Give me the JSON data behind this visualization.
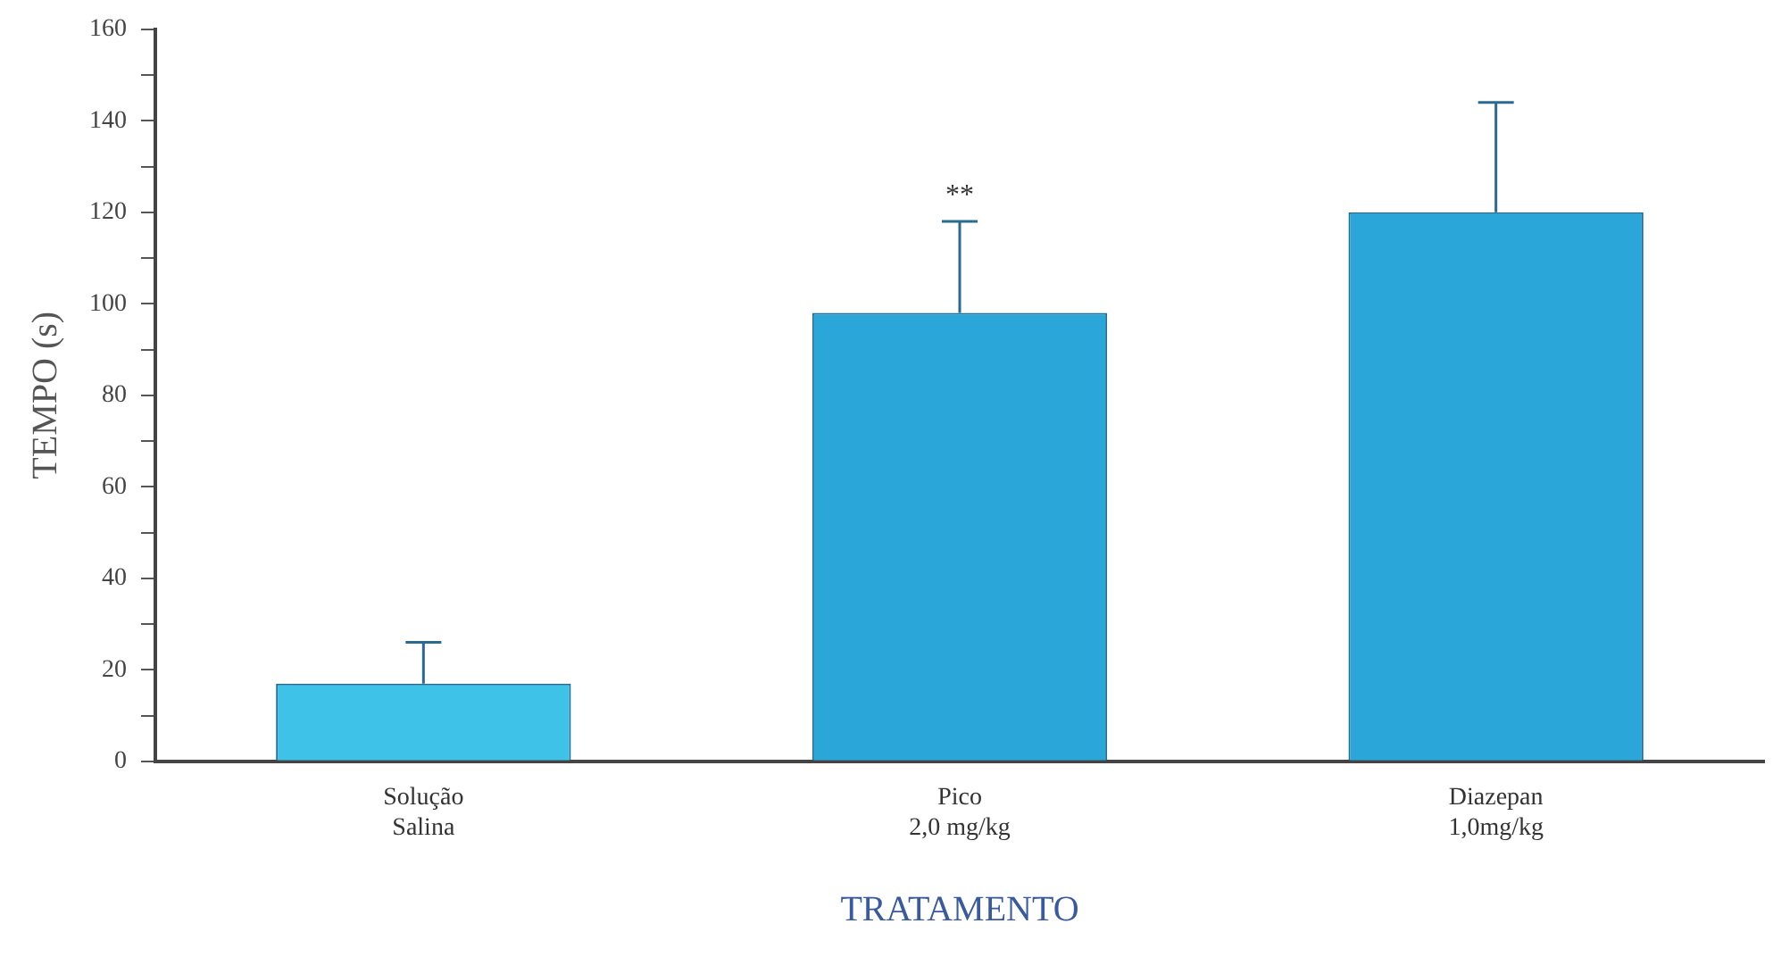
{
  "chart_data": {
    "type": "bar",
    "xlabel": "TRATAMENTO",
    "ylabel": "TEMPO (s)",
    "categories": [
      "Solução\nSalina",
      "Pico\n2,0 mg/kg",
      "Diazepan\n1,0mg/kg"
    ],
    "values": [
      17,
      98,
      120
    ],
    "colors": [
      "#3ec2e8",
      "#2aa6d8",
      "#2aa6d8"
    ],
    "errors": [
      [
        17,
        26
      ],
      [
        98,
        118
      ],
      [
        120,
        144
      ]
    ],
    "ylim": [
      0,
      160
    ],
    "yticks": [
      0,
      {
        "value": 10,
        "label": null
      },
      20,
      {
        "value": 30,
        "label": null
      },
      40,
      {
        "value": 50,
        "label": null
      },
      60,
      {
        "value": 70,
        "label": null
      },
      80,
      {
        "value": 90,
        "label": null
      },
      100,
      {
        "value": 110,
        "label": null
      },
      120,
      {
        "value": 130,
        "label": null
      },
      140,
      {
        "value": 150,
        "label": null
      },
      160
    ],
    "annotations": [
      {
        "text": "**",
        "x": "Pico\n2,0 mg/kg",
        "y": 118
      }
    ],
    "grid": false,
    "legend": false
  }
}
